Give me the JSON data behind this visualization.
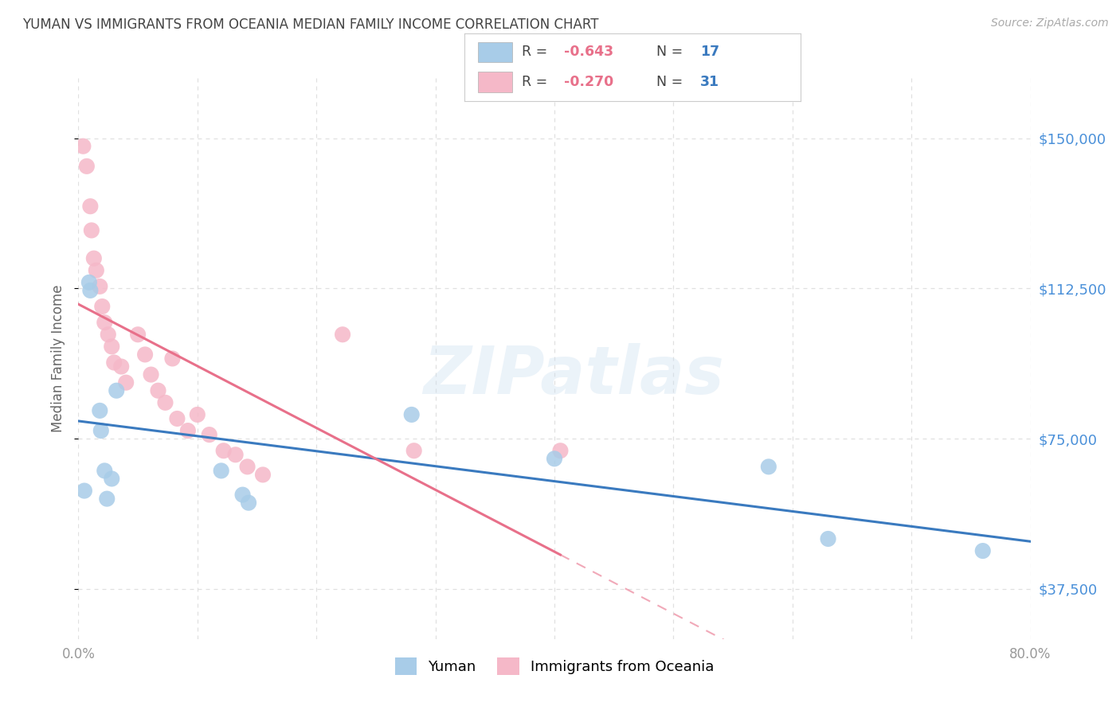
{
  "title": "YUMAN VS IMMIGRANTS FROM OCEANIA MEDIAN FAMILY INCOME CORRELATION CHART",
  "source": "Source: ZipAtlas.com",
  "ylabel": "Median Family Income",
  "xlim": [
    0.0,
    0.8
  ],
  "ylim": [
    25000,
    165000
  ],
  "yticks": [
    37500,
    75000,
    112500,
    150000
  ],
  "ytick_labels": [
    "$37,500",
    "$75,000",
    "$112,500",
    "$150,000"
  ],
  "xticks": [
    0.0,
    0.1,
    0.2,
    0.3,
    0.4,
    0.5,
    0.6,
    0.7,
    0.8
  ],
  "background_color": "#ffffff",
  "grid_color": "#e0e0e0",
  "blue_dot_color": "#a8cce8",
  "pink_dot_color": "#f5b8c8",
  "blue_line_color": "#3a7abf",
  "pink_line_color": "#e8708a",
  "title_color": "#444444",
  "axis_label_color": "#666666",
  "ytick_color": "#4a90d9",
  "xtick_color": "#999999",
  "r_val_color": "#e8708a",
  "n_val_color": "#3a7abf",
  "legend_r1_val": "-0.643",
  "legend_n1_val": "17",
  "legend_r2_val": "-0.270",
  "legend_n2_val": "31",
  "yuman_x": [
    0.005,
    0.009,
    0.01,
    0.018,
    0.019,
    0.022,
    0.024,
    0.028,
    0.032,
    0.12,
    0.138,
    0.143,
    0.28,
    0.4,
    0.58,
    0.63,
    0.76
  ],
  "yuman_y": [
    62000,
    114000,
    112000,
    82000,
    77000,
    67000,
    60000,
    65000,
    87000,
    67000,
    61000,
    59000,
    81000,
    70000,
    68000,
    50000,
    47000
  ],
  "oceania_x": [
    0.004,
    0.007,
    0.01,
    0.011,
    0.013,
    0.015,
    0.018,
    0.02,
    0.022,
    0.025,
    0.028,
    0.03,
    0.036,
    0.04,
    0.05,
    0.056,
    0.061,
    0.067,
    0.073,
    0.079,
    0.083,
    0.092,
    0.1,
    0.11,
    0.122,
    0.132,
    0.142,
    0.155,
    0.222,
    0.282,
    0.405
  ],
  "oceania_y": [
    148000,
    143000,
    133000,
    127000,
    120000,
    117000,
    113000,
    108000,
    104000,
    101000,
    98000,
    94000,
    93000,
    89000,
    101000,
    96000,
    91000,
    87000,
    84000,
    95000,
    80000,
    77000,
    81000,
    76000,
    72000,
    71000,
    68000,
    66000,
    101000,
    72000,
    72000
  ],
  "watermark_text": "ZIPatlas",
  "bottom_legend_yuman": "Yuman",
  "bottom_legend_oceania": "Immigrants from Oceania"
}
